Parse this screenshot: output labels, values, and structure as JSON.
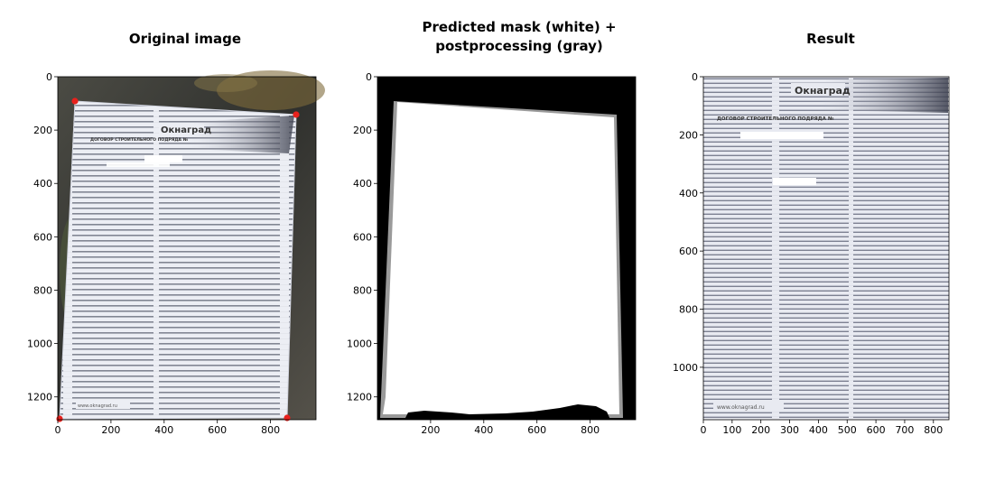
{
  "figure": {
    "panels": [
      {
        "id": "original",
        "title": "Original image",
        "x_ticks": [
          "0",
          "200",
          "400",
          "600",
          "800"
        ],
        "y_ticks": [
          "0",
          "200",
          "400",
          "600",
          "800",
          "1000",
          "1200"
        ]
      },
      {
        "id": "mask",
        "title": "Predicted mask (white) +\npostprocessing (gray)",
        "x_ticks": [
          "200",
          "400",
          "600",
          "800"
        ],
        "y_ticks": [
          "0",
          "200",
          "400",
          "600",
          "800",
          "1000",
          "1200"
        ]
      },
      {
        "id": "result",
        "title": "Result",
        "x_ticks": [
          "0",
          "100",
          "200",
          "300",
          "400",
          "500",
          "600",
          "700",
          "800"
        ],
        "y_ticks": [
          "0",
          "200",
          "400",
          "600",
          "800",
          "1000"
        ]
      }
    ],
    "document_text": {
      "company": "Окнаград",
      "contract_title": "ДОГОВОР СТРОИТЕЛЬНОГО ПОДРЯДА №",
      "footer_url": "www.oknagrad.ru"
    },
    "colors": {
      "mask_background": "#000000",
      "mask_fill": "#ffffff",
      "mask_outline": "#9a9a9a",
      "corner_marker": "#e8211d",
      "paper": "#e9ebf2",
      "scene_dark": "#3a3a36"
    }
  }
}
